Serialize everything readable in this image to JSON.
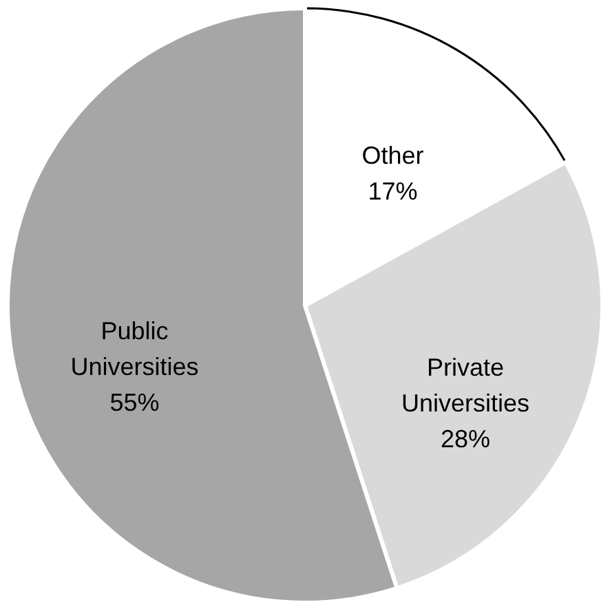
{
  "chart_data": {
    "type": "pie",
    "categories": [
      "Other",
      "Private Universities",
      "Public Universities"
    ],
    "values": [
      17,
      28,
      55
    ],
    "colors": [
      "#ffffff",
      "#d9d9d9",
      "#a6a6a6"
    ],
    "value_labels": [
      "17%",
      "28%",
      "55%"
    ],
    "legend": false
  }
}
